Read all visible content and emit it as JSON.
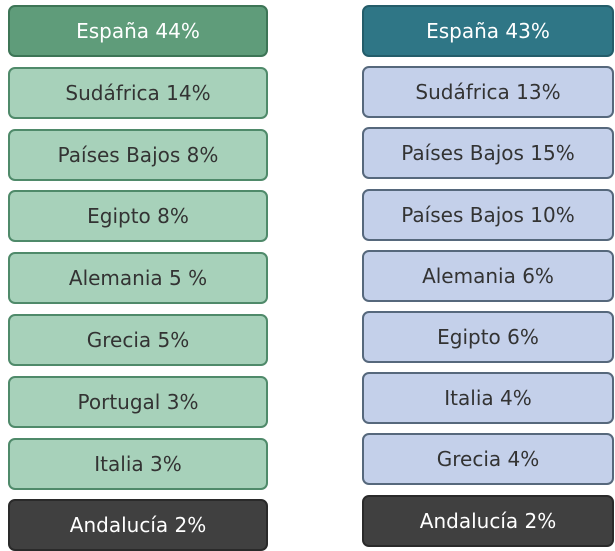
{
  "columns": [
    {
      "items": [
        "España 44%",
        "Sudáfrica 14%",
        "Países Bajos 8%",
        "Egipto 8%",
        "Alemania 5 %",
        "Grecia 5%",
        "Portugal 3%",
        "Italia 3%",
        "Andalucía 2%"
      ]
    },
    {
      "items": [
        "España 43%",
        "Sudáfrica 13%",
        "Países Bajos 15%",
        "Países Bajos 10%",
        "Alemania 6%",
        "Egipto 6%",
        "Italia 4%",
        "Grecia 4%",
        "Andalucía 2%"
      ]
    }
  ]
}
